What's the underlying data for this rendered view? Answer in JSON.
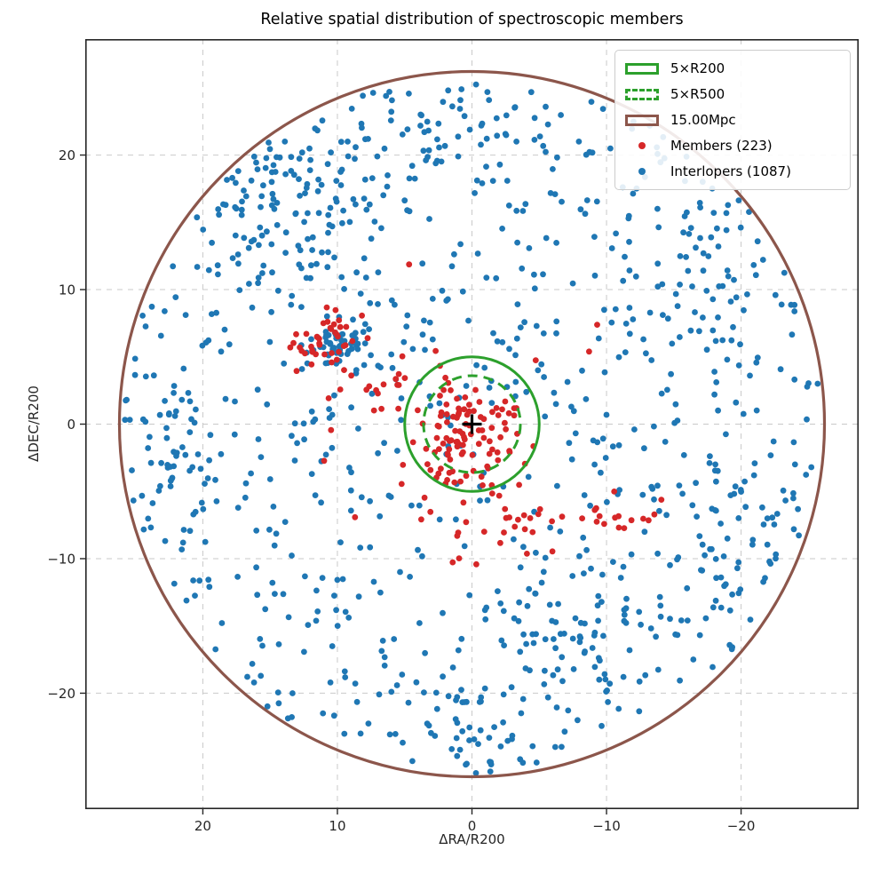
{
  "chart_data": {
    "type": "scatter",
    "title": "Relative spatial distribution of spectroscopic members",
    "xlabel": "ΔRA/R200",
    "ylabel": "ΔDEC/R200",
    "x_axis_inverted": true,
    "xlim": [
      28.74,
      -28.74
    ],
    "ylim": [
      -28.62,
      28.62
    ],
    "xticks": [
      20,
      10,
      0,
      -10,
      -20
    ],
    "yticks": [
      -20,
      -10,
      0,
      10,
      20
    ],
    "grid": {
      "on": true,
      "line_style": "dashed",
      "color": "#c9c9c9",
      "line_width": 1
    },
    "spine_color": "#262626",
    "background": "#ffffff",
    "field_radius": 26.2,
    "random_seed": 11,
    "overlays": [
      {
        "label": "5×R200",
        "shape": "circle",
        "center": [
          0,
          0
        ],
        "radius": 5.0,
        "color": "#2ca02c",
        "line_style": "solid",
        "line_width": 3,
        "in_legend": true,
        "swatch": "rect-solid"
      },
      {
        "label": "5×R500",
        "shape": "circle",
        "center": [
          0,
          0
        ],
        "radius": 3.6,
        "color": "#2ca02c",
        "line_style": "dashed",
        "line_width": 3,
        "in_legend": true,
        "swatch": "rect-dashed"
      },
      {
        "label": "15.00Mpc",
        "shape": "circle",
        "center": [
          0,
          0
        ],
        "radius": 26.2,
        "color": "#8c564b",
        "line_style": "solid",
        "line_width": 3.2,
        "in_legend": true,
        "swatch": "rect-solid"
      },
      {
        "label": "cluster-center-marker",
        "shape": "plus",
        "center": [
          0,
          0
        ],
        "color": "#000000",
        "arm": 11,
        "line_width": 3.2,
        "in_legend": false
      }
    ],
    "series": [
      {
        "label": "Interlopers (1087)",
        "count": 1087,
        "color": "#1f77b4",
        "marker_radius": 3.4,
        "clusters": [
          {
            "type": "uniform_disc",
            "center": [
              0,
              0
            ],
            "radius": 26.0,
            "n": 690
          },
          {
            "type": "gaussian",
            "center": [
              13.5,
              16.5
            ],
            "sigma": [
              3.5,
              3.0
            ],
            "n": 85
          },
          {
            "type": "gaussian",
            "center": [
              10.2,
              6.2
            ],
            "sigma": [
              1.1,
              0.9
            ],
            "n": 50
          },
          {
            "type": "gaussian",
            "center": [
              22,
              -2
            ],
            "sigma": [
              1.8,
              3.2
            ],
            "n": 38
          },
          {
            "type": "gaussian",
            "center": [
              2,
              -22.5
            ],
            "sigma": [
              4.5,
              1.8
            ],
            "n": 42
          },
          {
            "type": "gaussian",
            "center": [
              -17,
              12
            ],
            "sigma": [
              3.2,
              3.2
            ],
            "n": 40
          },
          {
            "type": "gaussian",
            "center": [
              -19,
              -7
            ],
            "sigma": [
              2.6,
              3.2
            ],
            "n": 42
          },
          {
            "type": "gaussian",
            "center": [
              1,
              21.5
            ],
            "sigma": [
              4.0,
              2.0
            ],
            "n": 45
          },
          {
            "type": "gaussian",
            "center": [
              -7,
              -15
            ],
            "sigma": [
              3.2,
              2.6
            ],
            "n": 55
          }
        ]
      },
      {
        "label": "Members (223)",
        "count": 223,
        "color": "#d62728",
        "marker_radius": 3.4,
        "clusters": [
          {
            "type": "gaussian",
            "center": [
              0.5,
              -0.5
            ],
            "sigma": [
              2.2,
              2.0
            ],
            "n": 100
          },
          {
            "type": "gaussian",
            "center": [
              10.3,
              6.3
            ],
            "sigma": [
              1.6,
              1.0
            ],
            "n": 40
          },
          {
            "type": "gaussian",
            "center": [
              6.0,
              3.0
            ],
            "sigma": [
              2.8,
              1.6
            ],
            "n": 20
          },
          {
            "type": "gaussian",
            "center": [
              -2.0,
              -6.3
            ],
            "sigma": [
              3.0,
              1.3
            ],
            "n": 28
          },
          {
            "type": "gaussian",
            "center": [
              -11.0,
              -7.0
            ],
            "sigma": [
              2.2,
              0.9
            ],
            "n": 18
          },
          {
            "type": "uniform_disc",
            "center": [
              0,
              0
            ],
            "radius": 13,
            "n": 17
          }
        ]
      }
    ],
    "legend": {
      "position": "upper right",
      "border_color": "#cccccc",
      "background": "#ffffff",
      "entries": [
        {
          "label": "5×R200",
          "swatch": "rect-solid",
          "color": "#2ca02c"
        },
        {
          "label": "5×R500",
          "swatch": "rect-dashed",
          "color": "#2ca02c"
        },
        {
          "label": "15.00Mpc",
          "swatch": "rect-solid",
          "color": "#8c564b"
        },
        {
          "label": "Members (223)",
          "swatch": "dot",
          "color": "#d62728"
        },
        {
          "label": "Interlopers (1087)",
          "swatch": "dot",
          "color": "#1f77b4"
        }
      ]
    }
  }
}
